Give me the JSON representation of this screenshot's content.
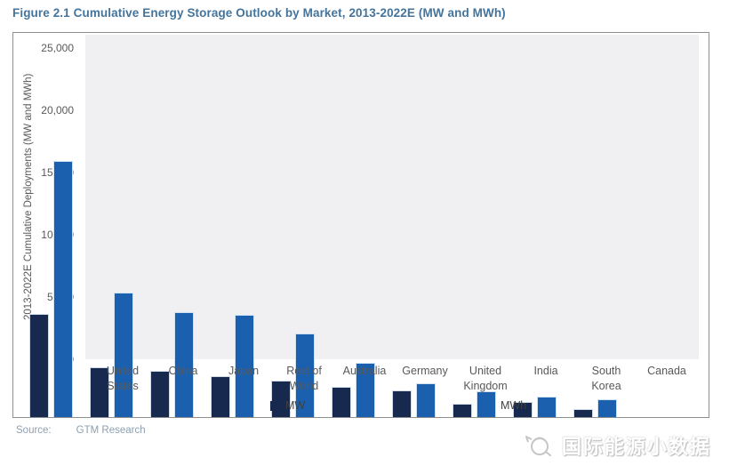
{
  "title": "Figure 2.1  Cumulative Energy Storage Outlook by Market, 2013-2022E (MW and MWh)",
  "source": {
    "label": "Source:",
    "value": "GTM Research"
  },
  "watermark": {
    "logo_icon": "teapot-logo-icon",
    "text": "国际能源小数据"
  },
  "chart_data": {
    "type": "bar",
    "title": "Figure 2.1 Cumulative Energy Storage Outlook by Market, 2013-2022E (MW and MWh)",
    "xlabel": "",
    "ylabel": "2013-2022E Cumulative Deployments (MW and MWh)",
    "ylim": [
      0,
      25000
    ],
    "yticks": [
      0,
      5000,
      10000,
      15000,
      20000,
      25000
    ],
    "ytick_labels": [
      "0",
      "5,000",
      "10,000",
      "15,000",
      "20,000",
      "25,000"
    ],
    "grid": false,
    "legend_position": "bottom",
    "plot_bg_color": "#f0eff1",
    "categories": [
      "United States",
      "China",
      "Japan",
      "Rest of World",
      "Australia",
      "Germany",
      "United Kingdom",
      "India",
      "South Korea",
      "Canada"
    ],
    "series": [
      {
        "name": "MW",
        "color": "#17294e",
        "values": [
          8300,
          4000,
          3700,
          3300,
          2900,
          2450,
          2150,
          1100,
          1250,
          650
        ]
      },
      {
        "name": "MWh",
        "color": "#1b60ae",
        "values": [
          20600,
          10000,
          8400,
          8200,
          6700,
          4350,
          2700,
          2050,
          1650,
          1400
        ]
      }
    ]
  }
}
